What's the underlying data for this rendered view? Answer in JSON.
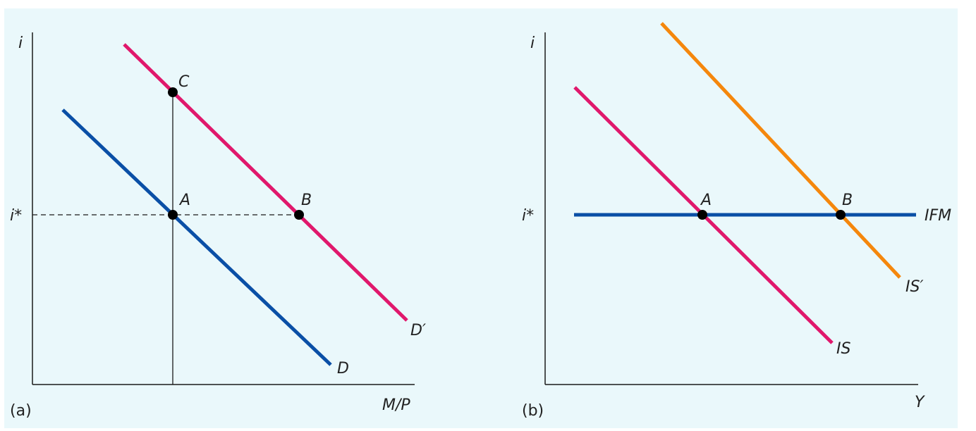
{
  "colors": {
    "background": "#eaf8fb",
    "axis": "#1a1a1a",
    "money_demand_d": "#0a4fa6",
    "money_demand_d_prime": "#e0186c",
    "ifm": "#0a4fa6",
    "is": "#e0186c",
    "is_prime": "#f5870c",
    "point": "#000000"
  },
  "panel_a": {
    "tag": "(a)",
    "y_axis_label": "i",
    "x_axis_label": "M/P",
    "rate_label": "i*",
    "curves": {
      "d": "D",
      "d_prime": "D′"
    },
    "points": {
      "a": "A",
      "b": "B",
      "c": "C"
    }
  },
  "panel_b": {
    "tag": "(b)",
    "y_axis_label": "i",
    "x_axis_label": "Y",
    "rate_label": "i*",
    "curves": {
      "ifm": "IFM",
      "is": "IS",
      "is_prime": "IS′"
    },
    "points": {
      "a": "A",
      "b": "B"
    }
  }
}
